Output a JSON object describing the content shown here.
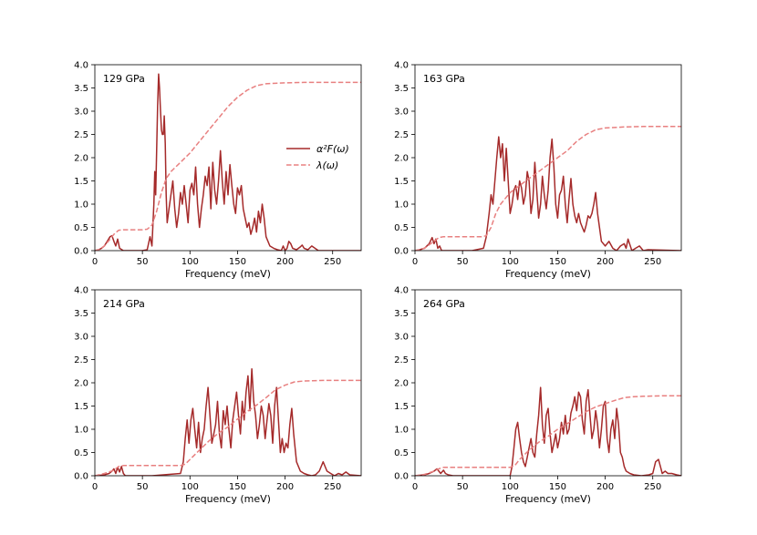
{
  "colors": {
    "a2f": "#a52a2a",
    "lambda": "#e88080",
    "axis": "#000000"
  },
  "legend": {
    "a2f_label": "α²F(ω)",
    "lambda_label": "λ(ω)"
  },
  "chart_data": [
    {
      "type": "line",
      "title": "129 GPa",
      "xlabel": "Frequency (meV)",
      "ylabel": "",
      "xlim": [
        0,
        280
      ],
      "ylim": [
        0,
        4.0
      ],
      "xticks": [
        0,
        50,
        100,
        150,
        200,
        250
      ],
      "yticks": [
        0.0,
        0.5,
        1.0,
        1.5,
        2.0,
        2.5,
        3.0,
        3.5,
        4.0
      ],
      "show_legend": true,
      "series": [
        {
          "name": "α²F(ω)",
          "style": "solid",
          "x": [
            0,
            4,
            7,
            10,
            13,
            16,
            18,
            20,
            22,
            24,
            26,
            30,
            40,
            50,
            55,
            58,
            60,
            62,
            63,
            64,
            65,
            66,
            67,
            68,
            69,
            70,
            71,
            72,
            73,
            74,
            75,
            76,
            78,
            80,
            82,
            84,
            86,
            88,
            90,
            92,
            94,
            96,
            98,
            100,
            102,
            104,
            106,
            108,
            110,
            112,
            114,
            116,
            118,
            120,
            122,
            124,
            126,
            128,
            130,
            132,
            134,
            136,
            138,
            140,
            142,
            144,
            146,
            148,
            150,
            152,
            154,
            156,
            158,
            160,
            162,
            164,
            166,
            168,
            170,
            172,
            174,
            176,
            178,
            180,
            184,
            188,
            192,
            196,
            198,
            200,
            202,
            204,
            206,
            208,
            212,
            216,
            218,
            220,
            224,
            228,
            235,
            280
          ],
          "y": [
            0,
            0.02,
            0.05,
            0.1,
            0.2,
            0.3,
            0.32,
            0.2,
            0.1,
            0.25,
            0.05,
            0,
            0,
            0,
            0.02,
            0.3,
            0.1,
            1.0,
            1.7,
            1.2,
            2.2,
            3.1,
            3.8,
            3.5,
            3.0,
            2.6,
            2.5,
            2.5,
            2.9,
            2.3,
            1.2,
            0.6,
            0.9,
            1.2,
            1.5,
            0.9,
            0.5,
            0.8,
            1.25,
            1.0,
            1.4,
            1.0,
            0.6,
            1.3,
            1.45,
            1.2,
            1.8,
            1.0,
            0.5,
            0.9,
            1.2,
            1.6,
            1.4,
            1.8,
            0.9,
            1.9,
            1.3,
            1.0,
            1.5,
            2.15,
            1.5,
            1.0,
            1.7,
            1.2,
            1.85,
            1.4,
            1.0,
            0.8,
            1.35,
            1.2,
            1.4,
            0.9,
            0.7,
            0.5,
            0.6,
            0.35,
            0.5,
            0.7,
            0.4,
            0.85,
            0.6,
            1.0,
            0.7,
            0.3,
            0.1,
            0.05,
            0.02,
            0.0,
            0.1,
            0.0,
            0.05,
            0.2,
            0.15,
            0.05,
            0.02,
            0.08,
            0.12,
            0.05,
            0.02,
            0.1,
            0.0,
            0.0
          ]
        },
        {
          "name": "λ(ω)",
          "style": "dashed",
          "x": [
            0,
            5,
            10,
            15,
            20,
            25,
            30,
            50,
            55,
            60,
            65,
            70,
            75,
            80,
            90,
            100,
            110,
            120,
            130,
            140,
            150,
            160,
            170,
            180,
            190,
            200,
            220,
            240,
            260,
            280
          ],
          "y": [
            0,
            0.03,
            0.1,
            0.22,
            0.35,
            0.44,
            0.45,
            0.45,
            0.46,
            0.55,
            0.85,
            1.25,
            1.55,
            1.7,
            1.9,
            2.1,
            2.35,
            2.6,
            2.85,
            3.1,
            3.3,
            3.45,
            3.55,
            3.59,
            3.6,
            3.61,
            3.62,
            3.62,
            3.62,
            3.62
          ]
        }
      ]
    },
    {
      "type": "line",
      "title": "163 GPa",
      "xlabel": "Frequency (meV)",
      "ylabel": "",
      "xlim": [
        0,
        280
      ],
      "ylim": [
        0,
        4.0
      ],
      "xticks": [
        0,
        50,
        100,
        150,
        200,
        250
      ],
      "yticks": [
        0.0,
        0.5,
        1.0,
        1.5,
        2.0,
        2.5,
        3.0,
        3.5,
        4.0
      ],
      "show_legend": false,
      "series": [
        {
          "name": "α²F(ω)",
          "style": "solid",
          "x": [
            0,
            5,
            10,
            15,
            18,
            20,
            22,
            24,
            26,
            28,
            30,
            40,
            60,
            72,
            75,
            78,
            80,
            82,
            84,
            86,
            88,
            90,
            92,
            94,
            96,
            98,
            100,
            102,
            104,
            106,
            108,
            110,
            112,
            114,
            116,
            118,
            120,
            122,
            124,
            126,
            128,
            130,
            132,
            134,
            136,
            138,
            140,
            142,
            144,
            146,
            148,
            150,
            152,
            154,
            156,
            158,
            160,
            162,
            164,
            166,
            168,
            170,
            172,
            174,
            176,
            178,
            180,
            182,
            184,
            186,
            188,
            190,
            192,
            196,
            200,
            204,
            208,
            212,
            216,
            220,
            222,
            224,
            228,
            232,
            236,
            240,
            245,
            280
          ],
          "y": [
            0,
            0.02,
            0.05,
            0.15,
            0.28,
            0.15,
            0.25,
            0.05,
            0.1,
            0.0,
            0,
            0,
            0,
            0.05,
            0.3,
            0.8,
            1.2,
            1.0,
            1.5,
            2.0,
            2.45,
            2.0,
            2.3,
            1.5,
            2.2,
            1.5,
            0.8,
            1.0,
            1.3,
            1.4,
            1.1,
            1.5,
            1.35,
            1.0,
            1.2,
            1.7,
            1.5,
            0.8,
            1.1,
            1.9,
            1.3,
            0.7,
            1.0,
            1.6,
            1.2,
            0.9,
            1.3,
            2.0,
            2.4,
            1.8,
            1.0,
            0.7,
            1.2,
            1.3,
            1.6,
            1.0,
            0.6,
            1.1,
            1.55,
            1.0,
            0.75,
            0.6,
            0.8,
            0.6,
            0.5,
            0.4,
            0.55,
            0.75,
            0.7,
            0.8,
            1.0,
            1.25,
            0.8,
            0.2,
            0.1,
            0.2,
            0.05,
            0.0,
            0.1,
            0.15,
            0.05,
            0.25,
            0.0,
            0.05,
            0.1,
            0.0,
            0.02,
            0.0
          ]
        },
        {
          "name": "λ(ω)",
          "style": "dashed",
          "x": [
            0,
            10,
            20,
            25,
            30,
            50,
            70,
            75,
            80,
            85,
            90,
            100,
            110,
            120,
            130,
            140,
            150,
            160,
            170,
            180,
            190,
            200,
            220,
            240,
            260,
            280
          ],
          "y": [
            0,
            0.05,
            0.2,
            0.28,
            0.3,
            0.3,
            0.3,
            0.32,
            0.5,
            0.8,
            1.0,
            1.25,
            1.4,
            1.55,
            1.7,
            1.85,
            2.0,
            2.15,
            2.35,
            2.5,
            2.6,
            2.64,
            2.66,
            2.67,
            2.67,
            2.67
          ]
        }
      ]
    },
    {
      "type": "line",
      "title": "214 GPa",
      "xlabel": "Frequency (meV)",
      "ylabel": "",
      "xlim": [
        0,
        280
      ],
      "ylim": [
        0,
        4.0
      ],
      "xticks": [
        0,
        50,
        100,
        150,
        200,
        250
      ],
      "yticks": [
        0.0,
        0.5,
        1.0,
        1.5,
        2.0,
        2.5,
        3.0,
        3.5,
        4.0
      ],
      "show_legend": false,
      "series": [
        {
          "name": "α²F(ω)",
          "style": "solid",
          "x": [
            0,
            10,
            15,
            18,
            20,
            22,
            24,
            26,
            28,
            30,
            32,
            40,
            60,
            90,
            93,
            95,
            97,
            99,
            101,
            103,
            105,
            107,
            109,
            111,
            113,
            115,
            117,
            119,
            121,
            123,
            125,
            127,
            129,
            131,
            133,
            135,
            137,
            139,
            141,
            143,
            145,
            147,
            149,
            151,
            153,
            155,
            157,
            159,
            161,
            163,
            165,
            167,
            169,
            171,
            173,
            175,
            177,
            179,
            181,
            183,
            185,
            187,
            189,
            191,
            193,
            195,
            197,
            199,
            201,
            203,
            205,
            207,
            209,
            212,
            216,
            220,
            224,
            228,
            232,
            236,
            240,
            244,
            248,
            252,
            256,
            260,
            264,
            268,
            280
          ],
          "y": [
            0,
            0.02,
            0.05,
            0.1,
            0.15,
            0.05,
            0.18,
            0.08,
            0.2,
            0.05,
            0,
            0,
            0,
            0.05,
            0.3,
            0.8,
            1.2,
            0.7,
            1.2,
            1.45,
            1.0,
            0.6,
            1.15,
            0.5,
            0.8,
            1.0,
            1.5,
            1.9,
            1.3,
            0.7,
            0.9,
            1.1,
            1.6,
            0.9,
            0.6,
            1.4,
            1.1,
            1.5,
            1.0,
            0.6,
            1.2,
            1.5,
            1.8,
            1.3,
            0.9,
            1.6,
            1.2,
            1.8,
            2.15,
            1.4,
            2.3,
            1.6,
            1.3,
            0.8,
            1.1,
            1.5,
            1.3,
            0.8,
            1.2,
            1.55,
            1.3,
            0.7,
            1.5,
            1.9,
            1.2,
            0.5,
            0.8,
            0.5,
            0.7,
            0.6,
            1.1,
            1.45,
            0.9,
            0.3,
            0.1,
            0.05,
            0.02,
            0.0,
            0.02,
            0.1,
            0.3,
            0.1,
            0.05,
            0.0,
            0.05,
            0.02,
            0.08,
            0.02,
            0.0
          ]
        },
        {
          "name": "λ(ω)",
          "style": "dashed",
          "x": [
            0,
            10,
            20,
            25,
            30,
            50,
            90,
            95,
            100,
            110,
            120,
            130,
            140,
            150,
            160,
            170,
            180,
            190,
            200,
            210,
            220,
            240,
            260,
            280
          ],
          "y": [
            0,
            0.05,
            0.12,
            0.2,
            0.22,
            0.22,
            0.22,
            0.25,
            0.35,
            0.55,
            0.75,
            0.92,
            1.05,
            1.22,
            1.38,
            1.52,
            1.68,
            1.85,
            1.95,
            2.02,
            2.04,
            2.05,
            2.05,
            2.05
          ]
        }
      ]
    },
    {
      "type": "line",
      "title": "264 GPa",
      "xlabel": "Frequency (meV)",
      "ylabel": "",
      "xlim": [
        0,
        280
      ],
      "ylim": [
        0,
        4.0
      ],
      "xticks": [
        0,
        50,
        100,
        150,
        200,
        250
      ],
      "yticks": [
        0.0,
        0.5,
        1.0,
        1.5,
        2.0,
        2.5,
        3.0,
        3.5,
        4.0
      ],
      "show_legend": false,
      "series": [
        {
          "name": "α²F(ω)",
          "style": "solid",
          "x": [
            0,
            10,
            15,
            20,
            23,
            25,
            27,
            30,
            32,
            35,
            40,
            60,
            100,
            102,
            104,
            106,
            108,
            110,
            112,
            114,
            116,
            118,
            120,
            122,
            124,
            126,
            128,
            130,
            132,
            134,
            136,
            138,
            140,
            142,
            144,
            146,
            148,
            150,
            152,
            154,
            156,
            158,
            160,
            162,
            164,
            166,
            168,
            170,
            172,
            174,
            176,
            178,
            180,
            182,
            184,
            186,
            188,
            190,
            192,
            194,
            196,
            198,
            200,
            202,
            204,
            206,
            208,
            210,
            212,
            214,
            216,
            218,
            220,
            222,
            226,
            230,
            234,
            238,
            242,
            246,
            250,
            253,
            256,
            258,
            260,
            263,
            266,
            270,
            275,
            280
          ],
          "y": [
            0,
            0.02,
            0.05,
            0.1,
            0.15,
            0.1,
            0.05,
            0.12,
            0.05,
            0.02,
            0,
            0,
            0,
            0.2,
            0.6,
            1.0,
            1.15,
            0.8,
            0.5,
            0.3,
            0.2,
            0.4,
            0.6,
            0.8,
            0.5,
            0.4,
            0.9,
            1.3,
            1.9,
            1.1,
            0.7,
            1.3,
            1.45,
            0.9,
            0.5,
            0.7,
            0.9,
            0.6,
            0.8,
            1.15,
            0.9,
            1.3,
            0.9,
            1.0,
            1.35,
            1.5,
            1.7,
            1.4,
            1.8,
            1.7,
            1.2,
            0.9,
            1.6,
            1.85,
            1.3,
            0.8,
            1.0,
            1.4,
            1.1,
            0.6,
            1.0,
            1.5,
            1.6,
            0.8,
            0.5,
            1.0,
            1.2,
            0.8,
            1.45,
            1.1,
            0.5,
            0.4,
            0.2,
            0.1,
            0.05,
            0.02,
            0.01,
            0.0,
            0.01,
            0.02,
            0.05,
            0.3,
            0.35,
            0.2,
            0.05,
            0.1,
            0.05,
            0.05,
            0.02,
            0.0
          ]
        },
        {
          "name": "λ(ω)",
          "style": "dashed",
          "x": [
            0,
            10,
            20,
            25,
            30,
            50,
            100,
            105,
            110,
            120,
            130,
            140,
            150,
            160,
            170,
            180,
            190,
            200,
            210,
            220,
            230,
            240,
            260,
            280
          ],
          "y": [
            0,
            0.03,
            0.1,
            0.15,
            0.18,
            0.18,
            0.18,
            0.22,
            0.35,
            0.55,
            0.72,
            0.85,
            1.0,
            1.12,
            1.25,
            1.38,
            1.48,
            1.55,
            1.62,
            1.68,
            1.7,
            1.71,
            1.72,
            1.72
          ]
        }
      ]
    }
  ]
}
